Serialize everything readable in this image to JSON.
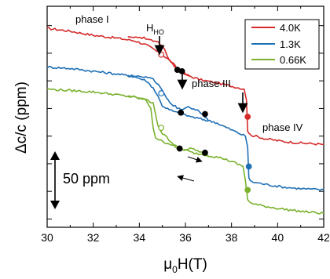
{
  "chart_data": {
    "type": "line",
    "xlabel": "μ0H(T)",
    "xlabel_main": "μ",
    "xlabel_sub": "0",
    "xlabel_rest": "H(T)",
    "ylabel": "Δc/c (ppm)",
    "xlim": [
      30,
      42
    ],
    "x_ticks": [
      30,
      32,
      34,
      36,
      38,
      40,
      42
    ],
    "x_tick_labels": [
      "30",
      "32",
      "34",
      "36",
      "38",
      "40",
      "42"
    ],
    "y_ticks": [
      0,
      1,
      2,
      3,
      4,
      5,
      6,
      7
    ],
    "ylim": [
      -0.3,
      7.7
    ],
    "ylim_note": "arbitrary offset units; each series is vertically shifted for clarity",
    "legend": {
      "position": "top-right"
    },
    "scale_bar": {
      "label": "50 ppm"
    },
    "annotations": [
      {
        "text": "phase I"
      },
      {
        "text": "H",
        "sub": "HO"
      },
      {
        "text": "phase III"
      },
      {
        "text": "phase IV"
      }
    ],
    "arrows": [
      {
        "label": "H_HO",
        "x": 34.8
      },
      {
        "label": "",
        "x": 36.0
      },
      {
        "label": "",
        "x": 38.6
      }
    ],
    "series": [
      {
        "name": "4.0K",
        "color": "#d42a2a",
        "up": [
          [
            30.0,
            6.9
          ],
          [
            31.0,
            6.8
          ],
          [
            32.0,
            6.65
          ],
          [
            33.0,
            6.55
          ],
          [
            33.8,
            6.45
          ],
          [
            34.3,
            6.3
          ],
          [
            34.7,
            6.1
          ],
          [
            35.0,
            5.95
          ],
          [
            35.3,
            5.75
          ],
          [
            35.6,
            5.5
          ],
          [
            35.8,
            5.35
          ],
          [
            36.1,
            5.2
          ],
          [
            36.6,
            5.05
          ],
          [
            37.2,
            4.95
          ],
          [
            37.8,
            4.85
          ],
          [
            38.3,
            4.75
          ],
          [
            38.55,
            4.7
          ],
          [
            38.65,
            4.3
          ],
          [
            38.7,
            3.2
          ],
          [
            38.8,
            3.05
          ],
          [
            39.5,
            2.9
          ],
          [
            40.3,
            2.8
          ],
          [
            41.0,
            2.75
          ],
          [
            42.0,
            2.7
          ]
        ],
        "down": [
          [
            36.2,
            5.2
          ],
          [
            35.9,
            5.3
          ],
          [
            35.6,
            5.45
          ],
          [
            35.3,
            5.75
          ],
          [
            35.1,
            6.15
          ],
          [
            34.9,
            6.35
          ],
          [
            34.6,
            6.45
          ],
          [
            34.2,
            6.55
          ],
          [
            33.5,
            6.6
          ]
        ],
        "markers": [
          {
            "x": 34.95,
            "y": 5.95,
            "open": true
          },
          {
            "x": 35.65,
            "y": 5.4,
            "open": false
          },
          {
            "x": 35.85,
            "y": 5.35,
            "open": false
          },
          {
            "x": 38.7,
            "y": 3.7,
            "open": false
          }
        ]
      },
      {
        "name": "1.3K",
        "color": "#1f6fb5",
        "up": [
          [
            30.0,
            5.5
          ],
          [
            31.0,
            5.45
          ],
          [
            32.0,
            5.35
          ],
          [
            33.0,
            5.25
          ],
          [
            33.8,
            5.15
          ],
          [
            34.3,
            5.0
          ],
          [
            34.6,
            4.75
          ],
          [
            34.8,
            4.45
          ],
          [
            35.0,
            4.1
          ],
          [
            35.3,
            3.95
          ],
          [
            35.8,
            3.8
          ],
          [
            36.5,
            3.65
          ],
          [
            37.3,
            3.5
          ],
          [
            37.8,
            3.3
          ],
          [
            38.2,
            3.15
          ],
          [
            38.6,
            3.0
          ],
          [
            38.7,
            2.6
          ],
          [
            38.75,
            1.5
          ],
          [
            38.85,
            1.35
          ],
          [
            39.5,
            1.25
          ],
          [
            40.3,
            1.15
          ],
          [
            41.0,
            1.1
          ],
          [
            42.0,
            1.05
          ]
        ],
        "down": [
          [
            37.0,
            3.55
          ],
          [
            36.6,
            3.9
          ],
          [
            36.2,
            4.05
          ],
          [
            35.8,
            3.95
          ],
          [
            35.4,
            4.15
          ],
          [
            35.1,
            4.5
          ],
          [
            34.9,
            4.8
          ],
          [
            34.6,
            5.05
          ],
          [
            34.2,
            5.15
          ],
          [
            33.5,
            5.2
          ]
        ],
        "markers": [
          {
            "x": 34.95,
            "y": 4.55,
            "open": true
          },
          {
            "x": 35.8,
            "y": 3.85,
            "open": false
          },
          {
            "x": 36.85,
            "y": 3.8,
            "open": false
          },
          {
            "x": 38.75,
            "y": 1.9,
            "open": false
          }
        ]
      },
      {
        "name": "0.66K",
        "color": "#7ab22e",
        "up": [
          [
            30.0,
            4.7
          ],
          [
            31.0,
            4.65
          ],
          [
            32.0,
            4.6
          ],
          [
            33.0,
            4.5
          ],
          [
            33.8,
            4.4
          ],
          [
            34.3,
            4.3
          ],
          [
            34.5,
            4.0
          ],
          [
            34.6,
            3.3
          ],
          [
            34.7,
            2.95
          ],
          [
            35.0,
            2.8
          ],
          [
            35.4,
            2.7
          ],
          [
            35.8,
            2.55
          ],
          [
            36.3,
            2.4
          ],
          [
            37.0,
            2.3
          ],
          [
            37.6,
            2.2
          ],
          [
            38.1,
            2.05
          ],
          [
            38.5,
            1.9
          ],
          [
            38.6,
            1.4
          ],
          [
            38.7,
            0.7
          ],
          [
            38.9,
            0.55
          ],
          [
            39.5,
            0.45
          ],
          [
            40.3,
            0.35
          ],
          [
            41.0,
            0.28
          ],
          [
            42.0,
            0.2
          ]
        ],
        "down": [
          [
            37.0,
            2.3
          ],
          [
            36.6,
            2.45
          ],
          [
            36.2,
            2.55
          ],
          [
            35.8,
            2.5
          ],
          [
            35.5,
            2.65
          ],
          [
            35.2,
            2.95
          ],
          [
            35.0,
            3.1
          ],
          [
            34.8,
            3.4
          ],
          [
            34.6,
            4.2
          ],
          [
            34.3,
            4.35
          ],
          [
            33.5,
            4.45
          ]
        ],
        "markers": [
          {
            "x": 34.95,
            "y": 3.3,
            "open": true
          },
          {
            "x": 35.75,
            "y": 2.55,
            "open": false
          },
          {
            "x": 36.85,
            "y": 2.4,
            "open": false
          },
          {
            "x": 38.7,
            "y": 1.05,
            "open": false
          }
        ]
      }
    ]
  }
}
